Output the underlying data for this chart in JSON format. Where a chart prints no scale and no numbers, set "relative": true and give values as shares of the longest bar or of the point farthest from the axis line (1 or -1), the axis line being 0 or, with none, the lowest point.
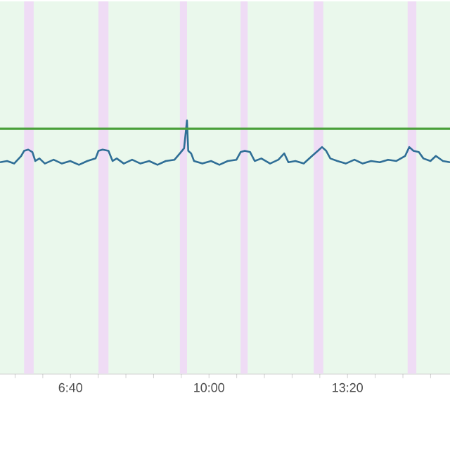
{
  "chart_data": {
    "type": "line",
    "relative": true,
    "x": [
      4.97,
      5.14,
      5.31,
      5.48,
      5.55,
      5.65,
      5.75,
      5.82,
      5.92,
      6.05,
      6.26,
      6.46,
      6.66,
      6.87,
      7.07,
      7.27,
      7.34,
      7.44,
      7.58,
      7.68,
      7.78,
      7.95,
      8.15,
      8.35,
      8.56,
      8.76,
      8.96,
      9.17,
      9.3,
      9.4,
      9.47,
      9.5,
      9.57,
      9.64,
      9.84,
      10.05,
      10.25,
      10.45,
      10.66,
      10.76,
      10.86,
      10.99,
      11.1,
      11.26,
      11.47,
      11.67,
      11.81,
      11.91,
      12.08,
      12.28,
      12.48,
      12.62,
      12.72,
      12.82,
      12.92,
      13.09,
      13.29,
      13.5,
      13.7,
      13.9,
      14.11,
      14.31,
      14.51,
      14.72,
      14.82,
      14.92,
      15.05,
      15.16,
      15.33,
      15.46,
      15.63,
      15.8
    ],
    "values": [
      0.835,
      0.84,
      0.83,
      0.86,
      0.88,
      0.885,
      0.875,
      0.84,
      0.85,
      0.83,
      0.845,
      0.83,
      0.84,
      0.825,
      0.84,
      0.85,
      0.88,
      0.885,
      0.88,
      0.84,
      0.85,
      0.83,
      0.845,
      0.83,
      0.84,
      0.825,
      0.84,
      0.845,
      0.87,
      0.89,
      1.0,
      0.88,
      0.87,
      0.84,
      0.83,
      0.84,
      0.825,
      0.84,
      0.845,
      0.875,
      0.88,
      0.875,
      0.84,
      0.85,
      0.83,
      0.845,
      0.87,
      0.835,
      0.84,
      0.83,
      0.86,
      0.88,
      0.895,
      0.88,
      0.85,
      0.84,
      0.83,
      0.845,
      0.83,
      0.84,
      0.835,
      0.845,
      0.84,
      0.86,
      0.895,
      0.88,
      0.875,
      0.85,
      0.84,
      0.86,
      0.84,
      0.835
    ],
    "color": "#2f6e96",
    "xlim": [
      4.97,
      15.8
    ],
    "xticks": [
      {
        "value": 5.3333,
        "label": null
      },
      {
        "value": 6.0,
        "label": null
      },
      {
        "value": 6.6667,
        "label": "6:40"
      },
      {
        "value": 7.3333,
        "label": null
      },
      {
        "value": 8.0,
        "label": null
      },
      {
        "value": 8.6667,
        "label": null
      },
      {
        "value": 9.3333,
        "label": null
      },
      {
        "value": 10.0,
        "label": "10:00"
      },
      {
        "value": 10.6667,
        "label": null
      },
      {
        "value": 11.3333,
        "label": null
      },
      {
        "value": 12.0,
        "label": null
      },
      {
        "value": 12.6667,
        "label": null
      },
      {
        "value": 13.3333,
        "label": "13:20"
      },
      {
        "value": 14.0,
        "label": null
      },
      {
        "value": 14.6667,
        "label": null
      },
      {
        "value": 15.3333,
        "label": null
      }
    ],
    "ref_lines": [
      {
        "axis": "y",
        "value": 0.967,
        "color": "#4aa03a"
      }
    ],
    "bands": [
      {
        "axis": "x",
        "from": 5.55,
        "to": 5.78,
        "color": "#efdcf5"
      },
      {
        "axis": "x",
        "from": 7.34,
        "to": 7.58,
        "color": "#efdcf5"
      },
      {
        "axis": "x",
        "from": 9.3,
        "to": 9.47,
        "color": "#efdcf5"
      },
      {
        "axis": "x",
        "from": 10.76,
        "to": 10.93,
        "color": "#efdcf5"
      },
      {
        "axis": "x",
        "from": 12.52,
        "to": 12.75,
        "color": "#efdcf5"
      },
      {
        "axis": "x",
        "from": 14.78,
        "to": 14.99,
        "color": "#efdcf5"
      }
    ],
    "marker": "none",
    "line_style": "solid"
  }
}
